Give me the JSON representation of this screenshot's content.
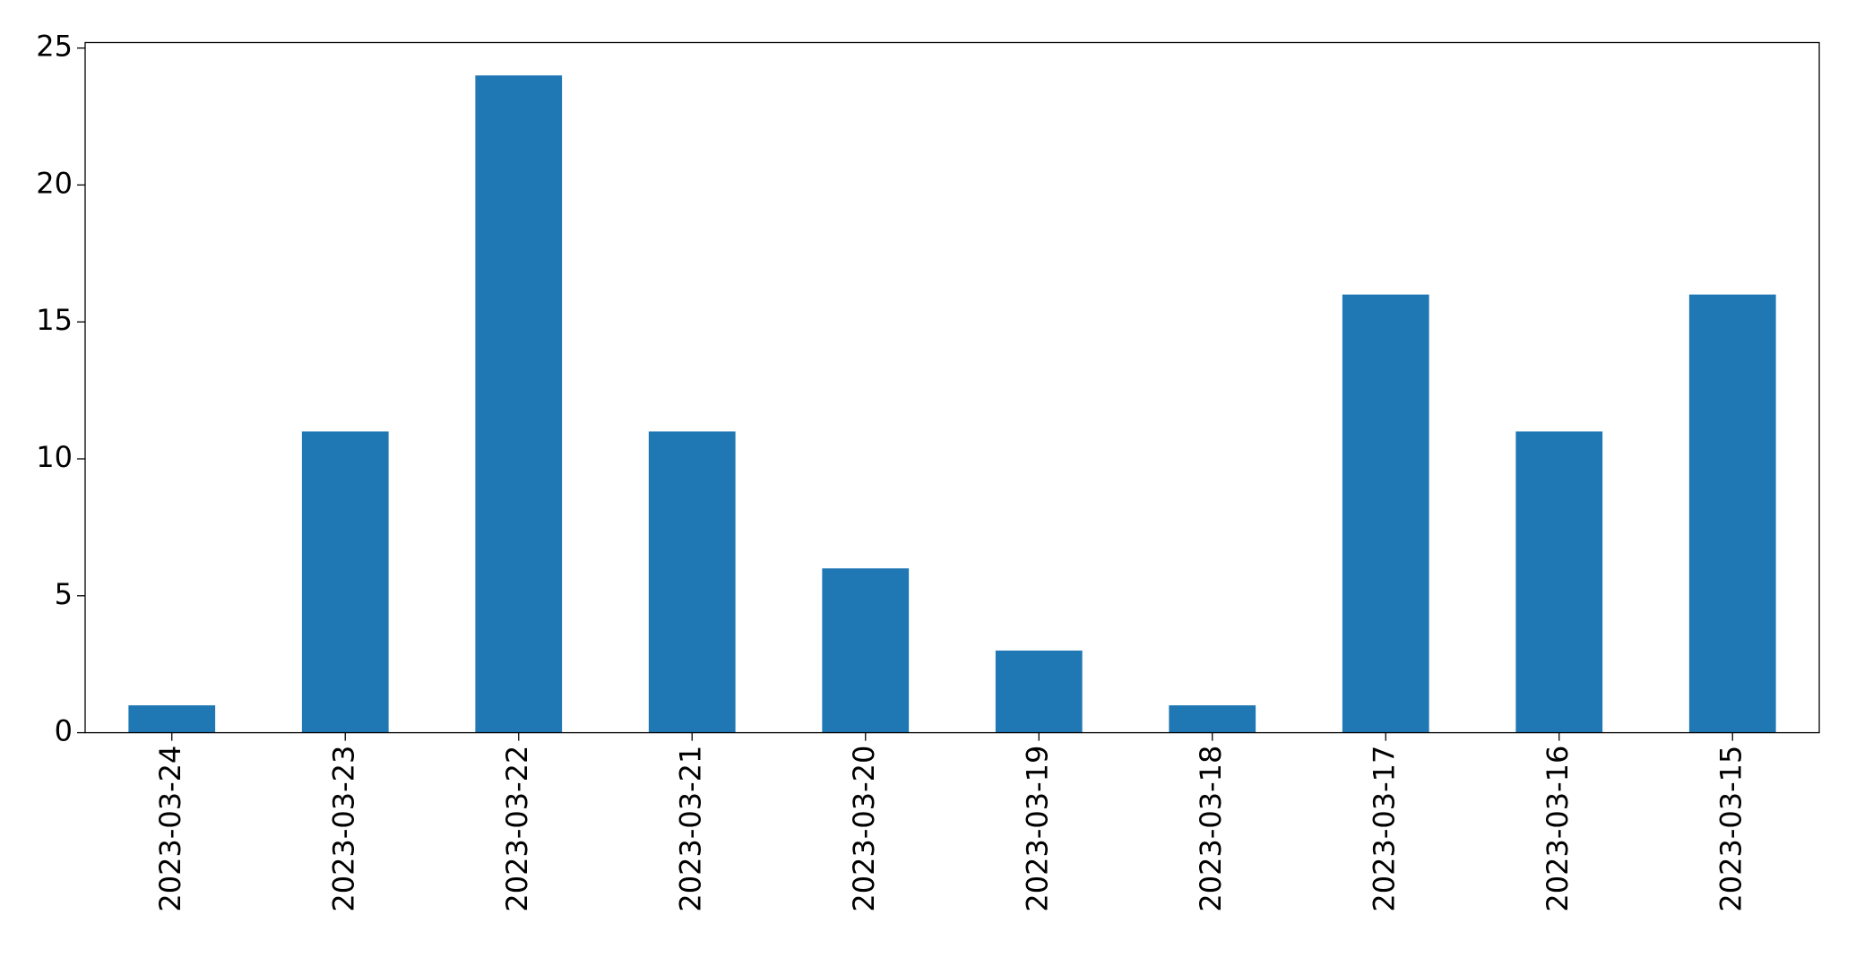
{
  "chart_data": {
    "type": "bar",
    "categories": [
      "2023-03-24",
      "2023-03-23",
      "2023-03-22",
      "2023-03-21",
      "2023-03-20",
      "2023-03-19",
      "2023-03-18",
      "2023-03-17",
      "2023-03-16",
      "2023-03-15"
    ],
    "values": [
      1,
      11,
      24,
      11,
      6,
      3,
      1,
      16,
      11,
      16
    ],
    "color": "#1f77b4",
    "ylim": [
      0,
      25.2
    ],
    "yticks": [
      0,
      5,
      10,
      15,
      20,
      25
    ],
    "grid": false
  }
}
